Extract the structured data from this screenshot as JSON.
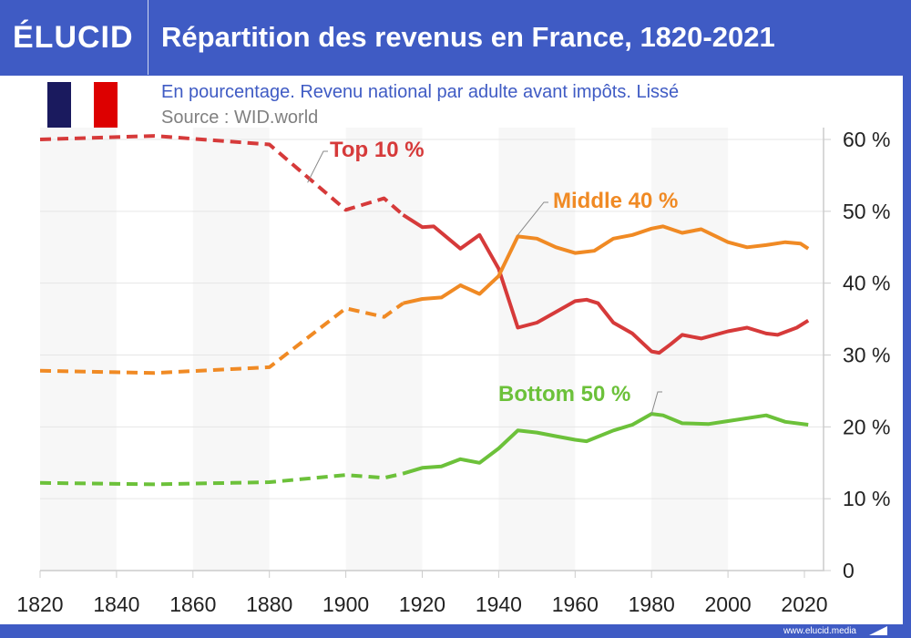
{
  "header": {
    "logo": "ÉLUCID",
    "title": "Répartition des revenus en France, 1820-2021"
  },
  "subtitle": "En pourcentage. Revenu national par adulte avant impôts. Lissé",
  "source": "Source : WID.world",
  "footer": "www.elucid.media",
  "flag": {
    "colors": [
      "#1a1a5e",
      "#ffffff",
      "#dd0000"
    ]
  },
  "chart_data": {
    "type": "line",
    "xlim": [
      1820,
      2021
    ],
    "ylim": [
      0,
      60
    ],
    "x_ticks": [
      1820,
      1840,
      1860,
      1880,
      1900,
      1920,
      1940,
      1960,
      1980,
      2000,
      2020
    ],
    "y_ticks": [
      "0",
      "10 %",
      "20 %",
      "30 %",
      "40 %",
      "50 %",
      "60 %"
    ],
    "y_tick_values": [
      0,
      10,
      20,
      30,
      40,
      50,
      60
    ],
    "y_axis_side": "right",
    "grid": "horizontal",
    "dashed_until": 1915,
    "series": [
      {
        "name": "Top 10 %",
        "color": "#d63a3a",
        "x": [
          1820,
          1850,
          1880,
          1900,
          1910,
          1915,
          1920,
          1923,
          1930,
          1935,
          1940,
          1945,
          1950,
          1955,
          1960,
          1963,
          1966,
          1970,
          1975,
          1980,
          1982,
          1985,
          1988,
          1993,
          2000,
          2005,
          2010,
          2013,
          2018,
          2021
        ],
        "y": [
          60,
          60.5,
          59.3,
          50.2,
          51.8,
          49.5,
          47.8,
          47.9,
          44.8,
          46.7,
          42,
          33.8,
          34.5,
          36,
          37.5,
          37.7,
          37.2,
          34.5,
          33,
          30.5,
          30.3,
          31.5,
          32.8,
          32.3,
          33.3,
          33.8,
          33,
          32.8,
          33.8,
          34.8
        ]
      },
      {
        "name": "Middle 40 %",
        "color": "#f08a24",
        "x": [
          1820,
          1850,
          1880,
          1900,
          1910,
          1915,
          1920,
          1925,
          1930,
          1935,
          1940,
          1945,
          1950,
          1955,
          1960,
          1965,
          1970,
          1975,
          1980,
          1983,
          1988,
          1993,
          2000,
          2005,
          2010,
          2015,
          2019,
          2021
        ],
        "y": [
          27.8,
          27.5,
          28.3,
          36.5,
          35.3,
          37.2,
          37.8,
          38,
          39.7,
          38.5,
          41,
          46.5,
          46.2,
          45,
          44.2,
          44.5,
          46.2,
          46.7,
          47.6,
          47.9,
          47,
          47.5,
          45.7,
          45,
          45.3,
          45.7,
          45.5,
          44.8
        ]
      },
      {
        "name": "Bottom 50 %",
        "color": "#6cc13a",
        "x": [
          1820,
          1850,
          1880,
          1900,
          1910,
          1915,
          1920,
          1925,
          1930,
          1935,
          1940,
          1945,
          1950,
          1955,
          1960,
          1963,
          1970,
          1975,
          1980,
          1983,
          1988,
          1995,
          2000,
          2010,
          2015,
          2021
        ],
        "y": [
          12.2,
          12,
          12.3,
          13.3,
          12.9,
          13.5,
          14.3,
          14.5,
          15.5,
          15,
          17,
          19.5,
          19.2,
          18.7,
          18.2,
          18,
          19.5,
          20.3,
          21.8,
          21.6,
          20.5,
          20.4,
          20.8,
          21.6,
          20.7,
          20.3
        ]
      }
    ],
    "annotations": [
      {
        "text": "Top 10 %",
        "series": "Top 10 %",
        "x": 1890
      },
      {
        "text": "Middle 40 %",
        "series": "Middle 40 %",
        "x": 1946
      },
      {
        "text": "Bottom 50 %",
        "series": "Bottom 50 %",
        "x": 1980
      }
    ]
  }
}
